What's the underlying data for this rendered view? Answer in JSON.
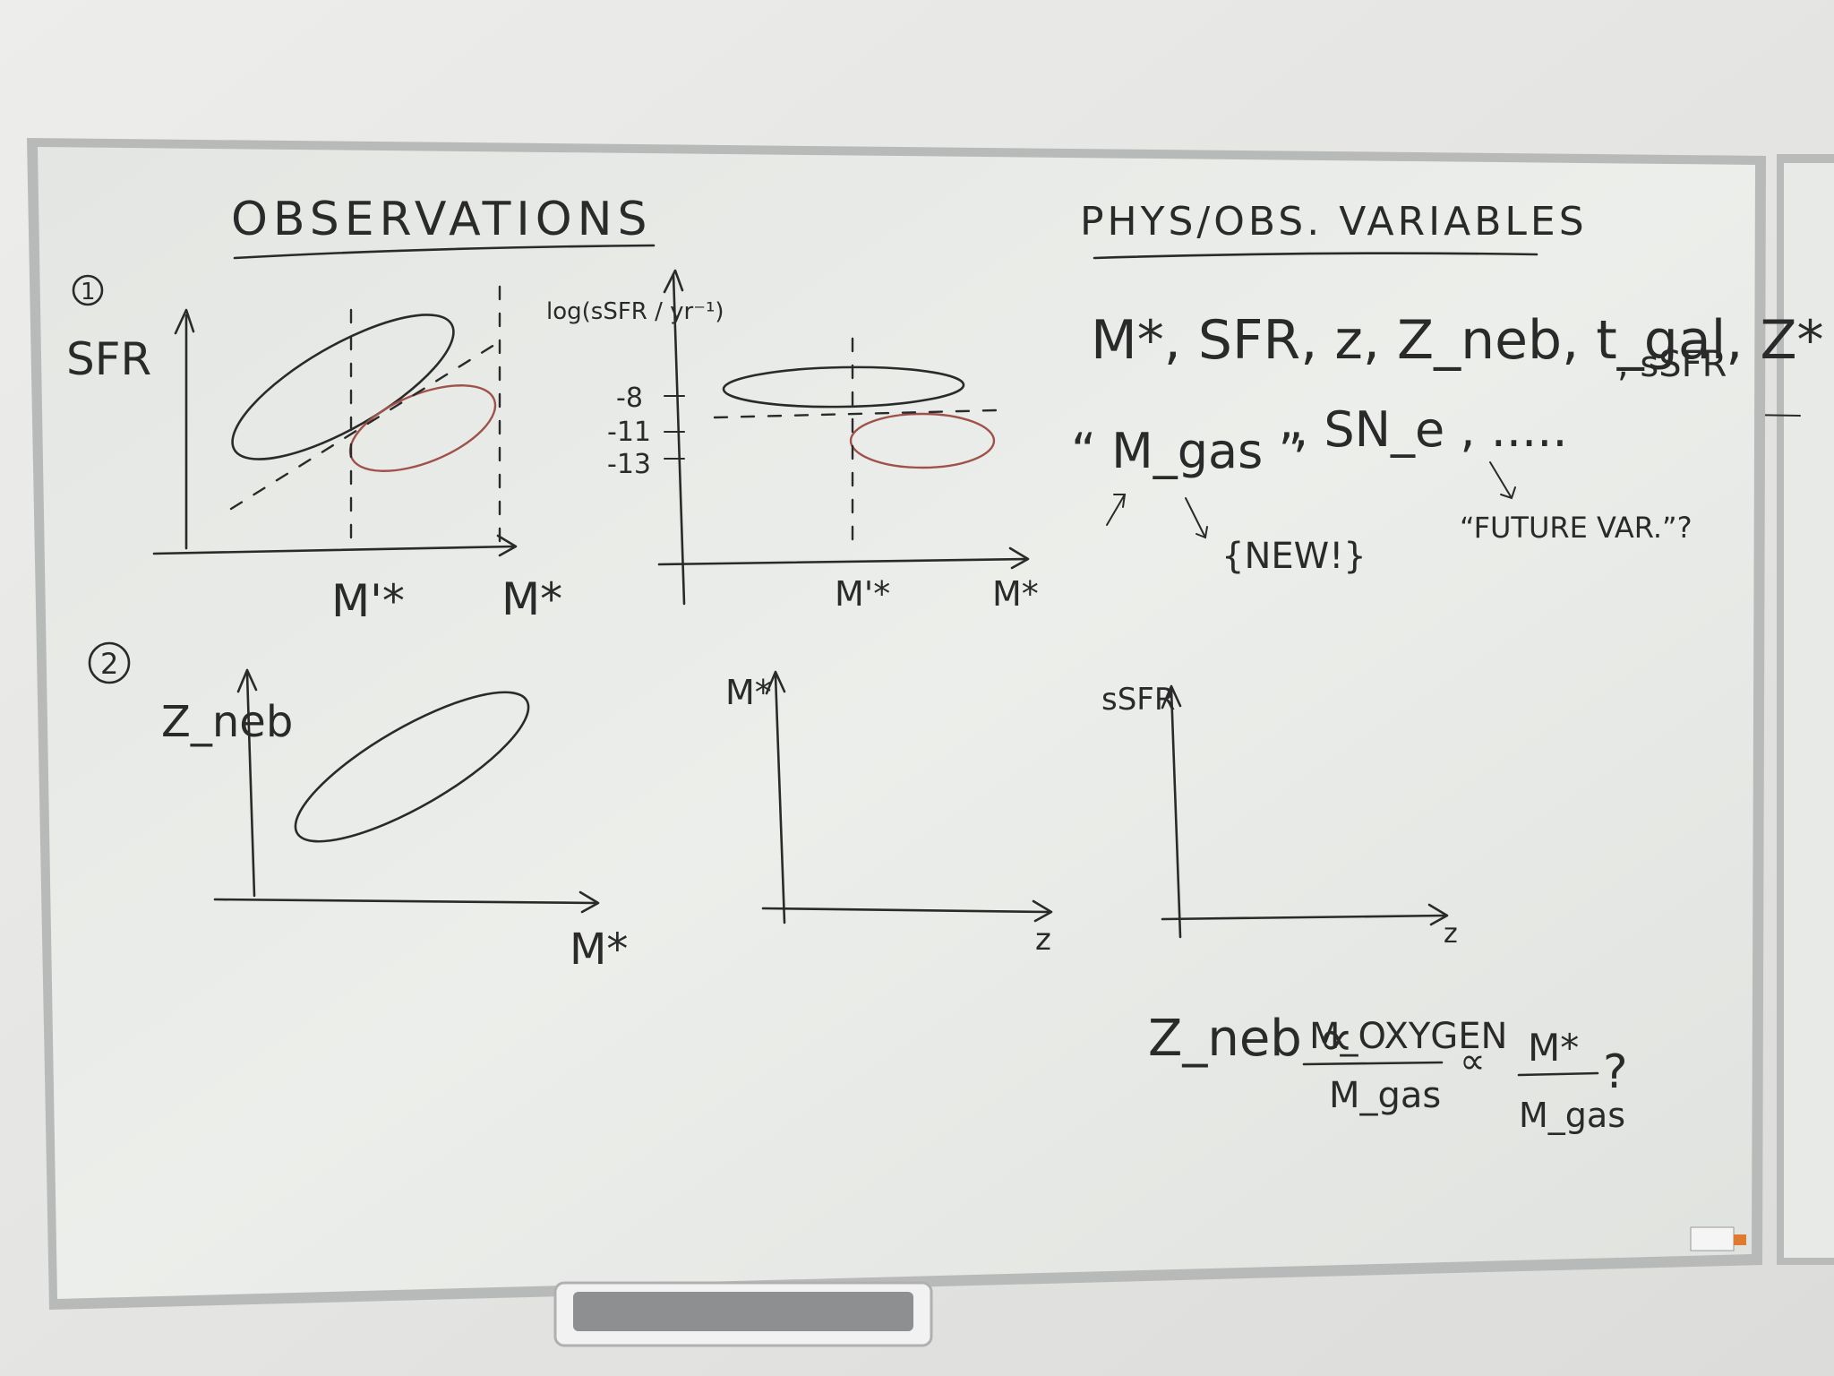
{
  "board": {
    "heading_left": "OBSERVATIONS",
    "heading_right": "PHYS/OBS. VARIABLES"
  },
  "panel1": {
    "number": "1",
    "left_plot": {
      "ylabel": "SFR",
      "xtick": "M'*",
      "xlabel": "M*"
    },
    "right_plot": {
      "ylabel": "log(sSFR / yr⁻¹)",
      "ticks": [
        "-8",
        "-11",
        "-13"
      ],
      "xtick": "M'*",
      "xlabel": "M*"
    }
  },
  "panel2": {
    "number": "2",
    "plot_a": {
      "ylabel": "Z_neb",
      "xlabel": "M*"
    },
    "plot_b": {
      "ylabel": "M*",
      "xlabel": "z"
    },
    "plot_c": {
      "ylabel": "sSFR",
      "xlabel": "z"
    }
  },
  "variables": {
    "line1": "M*, SFR, z, Z_neb, t_gal, Z*",
    "line1_tail": ", sSFR",
    "line2_quote": "“ M_gas ”",
    "line2_sn": ", SN_e , .....",
    "new_label": "{NEW!}",
    "future_label": "“FUTURE VAR.”?"
  },
  "equation": {
    "lhs": "Z_neb ∝",
    "frac1_num": "M_OXYGEN",
    "frac1_den": "M_gas",
    "prop": "∝",
    "frac2_num": "M*",
    "frac2_den": "M_gas",
    "tail": "?"
  }
}
